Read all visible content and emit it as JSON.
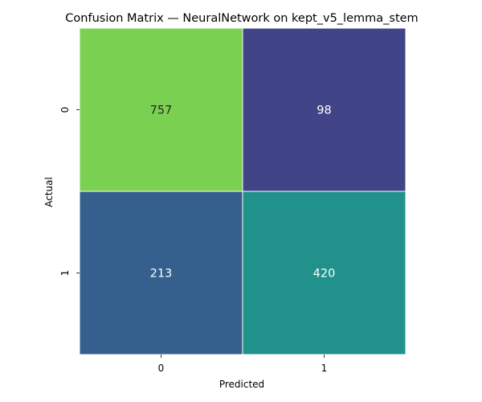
{
  "chart_data": {
    "type": "heatmap",
    "title": "Confusion Matrix — NeuralNetwork on kept_v5_lemma_stem",
    "xlabel": "Predicted",
    "ylabel": "Actual",
    "x_categories": [
      "0",
      "1"
    ],
    "y_categories": [
      "0",
      "1"
    ],
    "values": [
      [
        757,
        98
      ],
      [
        213,
        420
      ]
    ],
    "colormap": "viridis",
    "cell_colors": [
      [
        "#7ad151",
        "#414487"
      ],
      [
        "#355f8d",
        "#21918c"
      ]
    ],
    "cell_text_colors": [
      [
        "#262626",
        "#ffffff"
      ],
      [
        "#ffffff",
        "#ffffff"
      ]
    ],
    "colorbar": false,
    "grid": false
  }
}
